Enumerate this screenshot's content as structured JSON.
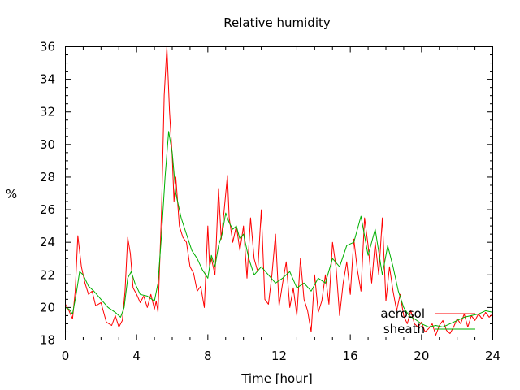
{
  "chart_data": {
    "type": "line",
    "title": "Relative humidity",
    "xlabel": "Time [hour]",
    "ylabel": "%",
    "xlim": [
      0,
      24
    ],
    "ylim": [
      18,
      36
    ],
    "xticks": [
      0,
      4,
      8,
      12,
      16,
      20,
      24
    ],
    "yticks": [
      18,
      20,
      22,
      24,
      26,
      28,
      30,
      32,
      34,
      36
    ],
    "xtick_labels": [
      "0",
      "4",
      "8",
      "12",
      "16",
      "20",
      "24"
    ],
    "ytick_labels": [
      "18",
      "20",
      "22",
      "24",
      "26",
      "28",
      "30",
      "32",
      "34",
      "36"
    ],
    "legend": "bottom-right",
    "grid": false,
    "series": [
      {
        "name": "aerosol",
        "color": "#ff0000",
        "x": [
          0,
          0.2,
          0.4,
          0.55,
          0.7,
          0.9,
          1.1,
          1.3,
          1.5,
          1.7,
          2.0,
          2.3,
          2.6,
          2.8,
          3.0,
          3.2,
          3.35,
          3.5,
          3.65,
          3.8,
          4.0,
          4.2,
          4.4,
          4.6,
          4.8,
          5.0,
          5.1,
          5.2,
          5.4,
          5.55,
          5.7,
          5.85,
          6.0,
          6.1,
          6.2,
          6.4,
          6.6,
          6.8,
          7.0,
          7.2,
          7.4,
          7.6,
          7.8,
          8.0,
          8.1,
          8.2,
          8.4,
          8.6,
          8.75,
          8.9,
          9.1,
          9.2,
          9.4,
          9.6,
          9.8,
          10.0,
          10.2,
          10.4,
          10.6,
          10.8,
          11.0,
          11.2,
          11.4,
          11.6,
          11.8,
          12.0,
          12.2,
          12.4,
          12.6,
          12.8,
          13.0,
          13.2,
          13.4,
          13.6,
          13.8,
          14.0,
          14.2,
          14.4,
          14.6,
          14.8,
          15.0,
          15.2,
          15.4,
          15.6,
          15.8,
          16.0,
          16.2,
          16.4,
          16.6,
          16.8,
          17.0,
          17.2,
          17.4,
          17.6,
          17.8,
          18.0,
          18.2,
          18.4,
          18.6,
          18.8,
          19.0,
          19.2,
          19.4,
          19.6,
          19.8,
          20.0,
          20.2,
          20.4,
          20.6,
          20.8,
          21.0,
          21.2,
          21.4,
          21.6,
          21.8,
          22.0,
          22.2,
          22.4,
          22.6,
          22.8,
          23.0,
          23.2,
          23.4,
          23.6,
          23.8,
          24.0
        ],
        "values": [
          20.2,
          19.8,
          19.3,
          21.0,
          24.4,
          22.5,
          21.5,
          20.8,
          21.0,
          20.1,
          20.3,
          19.1,
          18.9,
          19.5,
          18.8,
          19.2,
          21.0,
          24.3,
          23.3,
          21.2,
          20.8,
          20.3,
          20.7,
          20.0,
          20.8,
          19.9,
          20.4,
          19.7,
          26.0,
          33.0,
          36.0,
          32.0,
          29.3,
          26.5,
          28.0,
          25.0,
          24.3,
          24.0,
          22.5,
          22.1,
          21.0,
          21.3,
          20.0,
          25.0,
          22.5,
          23.0,
          22.0,
          27.3,
          24.2,
          25.8,
          28.1,
          25.5,
          24.0,
          25.0,
          23.5,
          25.0,
          21.8,
          25.5,
          23.0,
          22.2,
          26.0,
          20.5,
          20.2,
          22.0,
          24.5,
          20.1,
          21.5,
          22.8,
          20.0,
          21.2,
          19.5,
          23.0,
          20.5,
          19.8,
          18.5,
          22.0,
          19.7,
          20.4,
          22.0,
          20.2,
          24.0,
          22.5,
          19.5,
          21.5,
          22.8,
          20.8,
          24.2,
          22.3,
          21.0,
          25.5,
          23.8,
          21.5,
          24.0,
          22.0,
          25.5,
          20.4,
          22.5,
          21.0,
          19.8,
          20.8,
          19.5,
          19.0,
          19.8,
          19.0,
          18.8,
          19.1,
          18.5,
          18.7,
          19.0,
          18.3,
          18.9,
          19.2,
          18.6,
          18.4,
          18.8,
          19.3,
          19.0,
          19.6,
          18.8,
          19.5,
          19.2,
          19.6,
          19.3,
          19.7,
          19.4,
          19.6
        ]
      },
      {
        "name": "sheath",
        "color": "#00b000",
        "x": [
          0,
          0.2,
          0.4,
          0.6,
          0.8,
          1.0,
          1.3,
          1.6,
          2.0,
          2.4,
          2.8,
          3.1,
          3.3,
          3.5,
          3.7,
          3.9,
          4.2,
          4.6,
          5.0,
          5.2,
          5.4,
          5.6,
          5.8,
          6.0,
          6.2,
          6.5,
          6.8,
          7.1,
          7.4,
          7.7,
          8.0,
          8.2,
          8.4,
          8.6,
          8.8,
          9.0,
          9.2,
          9.4,
          9.6,
          9.8,
          10.0,
          10.3,
          10.6,
          11.0,
          11.4,
          11.8,
          12.2,
          12.6,
          13.0,
          13.4,
          13.8,
          14.2,
          14.6,
          15.0,
          15.4,
          15.8,
          16.2,
          16.6,
          17.0,
          17.4,
          17.8,
          18.1,
          18.4,
          18.7,
          19.0,
          19.3,
          19.6,
          20.0,
          20.4,
          20.8,
          21.2,
          21.6,
          22.0,
          22.4,
          22.8,
          23.2,
          23.6,
          24.0
        ],
        "values": [
          20.0,
          19.9,
          19.6,
          20.8,
          22.2,
          22.0,
          21.3,
          21.0,
          20.5,
          20.0,
          19.7,
          19.4,
          20.0,
          21.8,
          22.2,
          21.5,
          20.8,
          20.7,
          20.4,
          21.5,
          24.5,
          28.0,
          30.8,
          29.5,
          27.0,
          25.5,
          24.5,
          23.5,
          23.0,
          22.3,
          21.8,
          23.2,
          22.5,
          23.8,
          24.5,
          25.8,
          25.2,
          24.8,
          25.0,
          24.2,
          24.5,
          23.0,
          22.0,
          22.5,
          22.0,
          21.5,
          21.8,
          22.2,
          21.2,
          21.5,
          21.0,
          21.8,
          21.5,
          23.0,
          22.5,
          23.8,
          24.0,
          25.6,
          23.2,
          24.8,
          22.0,
          23.8,
          22.5,
          21.0,
          20.0,
          19.5,
          19.3,
          19.0,
          18.8,
          18.9,
          18.8,
          19.0,
          19.2,
          19.4,
          19.5,
          19.6,
          19.8,
          19.7
        ]
      }
    ]
  }
}
